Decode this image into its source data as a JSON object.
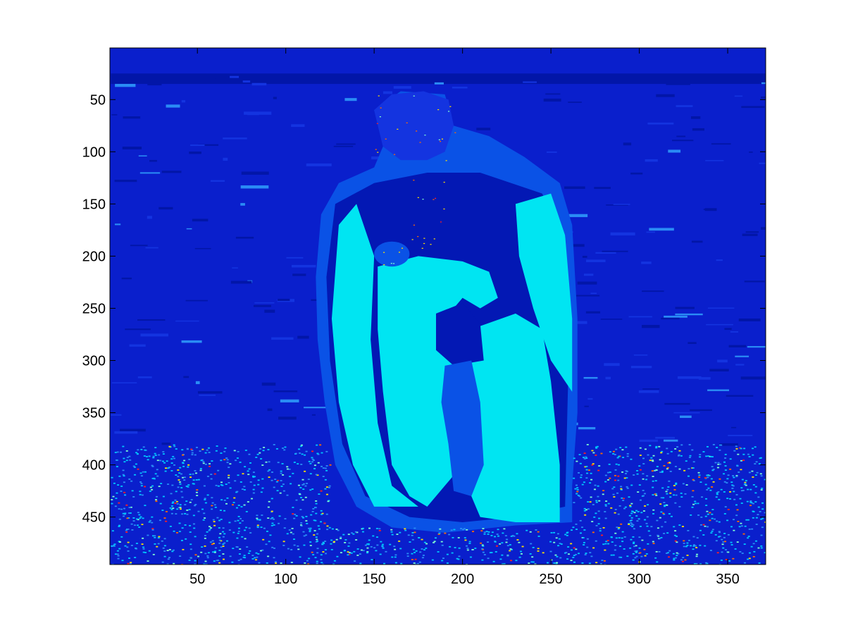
{
  "chart_data": {
    "type": "heatmap",
    "title": "",
    "xlabel": "",
    "ylabel": "",
    "xlim": [
      0.5,
      371.5
    ],
    "ylim": [
      0.5,
      495.5
    ],
    "y_reversed": true,
    "xticks": [
      50,
      100,
      150,
      200,
      250,
      300,
      350
    ],
    "yticks": [
      50,
      100,
      150,
      200,
      250,
      300,
      350,
      400,
      450
    ],
    "colormap": "jet",
    "description": "",
    "palette": {
      "background": "#0a1fcc",
      "band_dark": "#0216a8",
      "band_mid": "#1434e0",
      "mid_blue": "#0a52e6",
      "light_blue": "#2a8cf5",
      "cyan": "#00e5f2",
      "deep_blue": "#0318b4",
      "speck_colors": [
        "#00c8ff",
        "#2a8cf5",
        "#7fffd0",
        "#ffe000",
        "#ff6a00",
        "#ff2020"
      ]
    },
    "regions": [
      {
        "name": "upper-background",
        "x": [
          1,
          371
        ],
        "y": [
          1,
          380
        ],
        "level": "background"
      },
      {
        "name": "noisy-ground",
        "x": [
          1,
          371
        ],
        "y": [
          380,
          495
        ],
        "level": "speckled"
      },
      {
        "name": "cloak-figure",
        "x": [
          115,
          265
        ],
        "y": [
          40,
          465
        ],
        "level": "cyan"
      },
      {
        "name": "head",
        "x": [
          145,
          195
        ],
        "y": [
          40,
          110
        ],
        "level": "mid"
      }
    ]
  }
}
